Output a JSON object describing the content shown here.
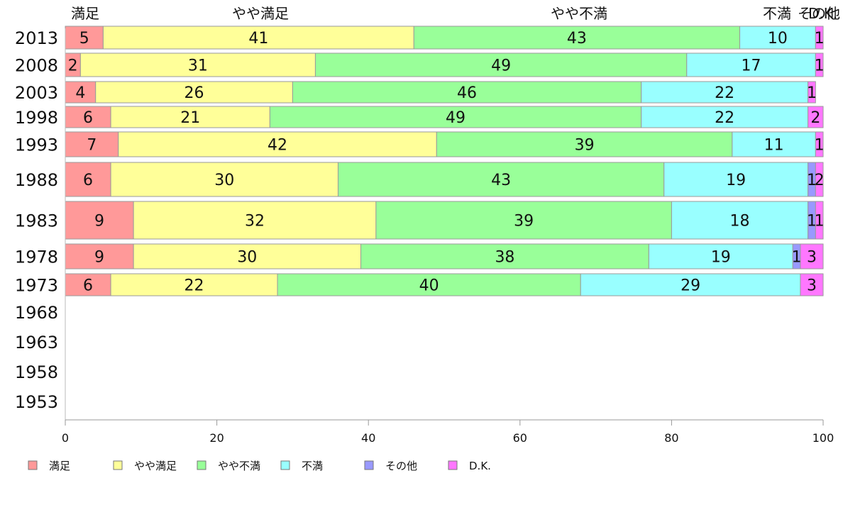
{
  "chart_data": {
    "type": "bar",
    "orientation": "horizontal",
    "stacked": true,
    "title": "",
    "xlabel": "",
    "ylabel": "",
    "xlim": [
      0,
      100
    ],
    "x_ticks": [
      0,
      20,
      40,
      60,
      80,
      100
    ],
    "grid": false,
    "legend_position": "bottom",
    "top_labels": [
      "満足",
      "やや満足",
      "やや不満",
      "不満",
      "その他",
      "D.K."
    ],
    "categories": [
      "2013",
      "2008",
      "2003",
      "1998",
      "1993",
      "1988",
      "1983",
      "1978",
      "1973",
      "1968",
      "1963",
      "1958",
      "1953"
    ],
    "series": [
      {
        "name": "満足",
        "color": "#ff9999",
        "values": [
          5,
          2,
          4,
          6,
          7,
          6,
          9,
          9,
          6,
          null,
          null,
          null,
          null
        ]
      },
      {
        "name": "やや満足",
        "color": "#ffff99",
        "values": [
          41,
          31,
          26,
          21,
          42,
          30,
          32,
          30,
          22,
          null,
          null,
          null,
          null
        ]
      },
      {
        "name": "やや不満",
        "color": "#99ff99",
        "values": [
          43,
          49,
          46,
          49,
          39,
          43,
          39,
          38,
          40,
          null,
          null,
          null,
          null
        ]
      },
      {
        "name": "不満",
        "color": "#99ffff",
        "values": [
          10,
          17,
          22,
          22,
          11,
          19,
          18,
          19,
          29,
          null,
          null,
          null,
          null
        ]
      },
      {
        "name": "その他",
        "color": "#9999ff",
        "values": [
          0,
          0,
          0,
          0,
          0,
          1,
          1,
          1,
          0,
          null,
          null,
          null,
          null
        ]
      },
      {
        "name": "D.K.",
        "color": "#ff77ff",
        "values": [
          1,
          1,
          1,
          2,
          1,
          2,
          1,
          3,
          3,
          null,
          null,
          null,
          null
        ]
      }
    ]
  }
}
